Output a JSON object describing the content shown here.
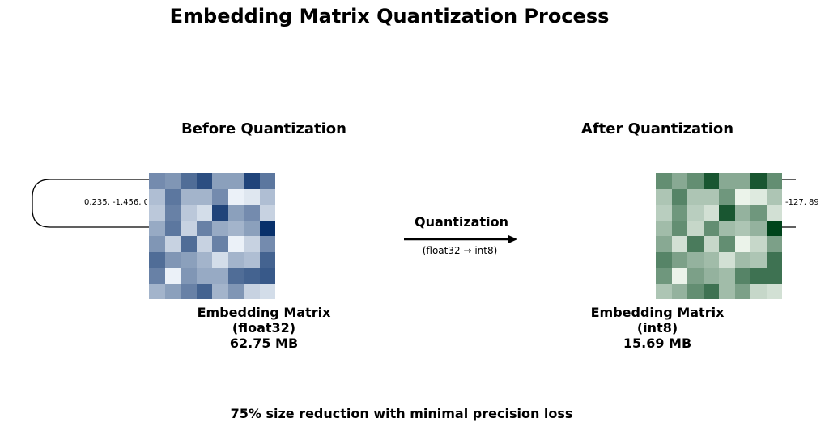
{
  "title": "Embedding Matrix Quantization Process",
  "before": {
    "heading": "Before Quantization",
    "caption_line1": "Embedding Matrix",
    "caption_line2": "(float32)",
    "caption_line3": "62.75 MB",
    "sample_values": "0.235, -1.456, 0",
    "cmap": [
      "#f7fbff",
      "#08306b"
    ],
    "matrix": [
      [
        0.55,
        0.5,
        0.7,
        0.85,
        0.45,
        0.45,
        0.9,
        0.65
      ],
      [
        0.3,
        0.65,
        0.35,
        0.35,
        0.55,
        0.05,
        0.1,
        0.3
      ],
      [
        0.25,
        0.6,
        0.25,
        0.15,
        0.9,
        0.45,
        0.55,
        0.2
      ],
      [
        0.4,
        0.65,
        0.2,
        0.6,
        0.4,
        0.35,
        0.45,
        1.0
      ],
      [
        0.5,
        0.2,
        0.7,
        0.2,
        0.6,
        0.05,
        0.2,
        0.55
      ],
      [
        0.7,
        0.5,
        0.45,
        0.35,
        0.15,
        0.35,
        0.3,
        0.75
      ],
      [
        0.6,
        0.05,
        0.5,
        0.4,
        0.4,
        0.7,
        0.75,
        0.8
      ],
      [
        0.35,
        0.45,
        0.6,
        0.75,
        0.35,
        0.5,
        0.2,
        0.15
      ]
    ]
  },
  "after": {
    "heading": "After Quantization",
    "caption_line1": "Embedding Matrix",
    "caption_line2": "(int8)",
    "caption_line3": "15.69 MB",
    "sample_values": "-127, 89",
    "cmap": [
      "#f7fcf5",
      "#00441b"
    ],
    "matrix": [
      [
        0.6,
        0.45,
        0.6,
        0.9,
        0.45,
        0.45,
        0.9,
        0.6
      ],
      [
        0.3,
        0.65,
        0.3,
        0.3,
        0.55,
        0.05,
        0.1,
        0.3
      ],
      [
        0.25,
        0.55,
        0.25,
        0.15,
        0.9,
        0.4,
        0.55,
        0.15
      ],
      [
        0.35,
        0.6,
        0.2,
        0.6,
        0.35,
        0.3,
        0.4,
        1.0
      ],
      [
        0.45,
        0.15,
        0.7,
        0.2,
        0.6,
        0.05,
        0.2,
        0.5
      ],
      [
        0.65,
        0.5,
        0.4,
        0.35,
        0.15,
        0.35,
        0.3,
        0.75
      ],
      [
        0.55,
        0.05,
        0.5,
        0.4,
        0.35,
        0.65,
        0.75,
        0.75
      ],
      [
        0.3,
        0.4,
        0.6,
        0.75,
        0.35,
        0.5,
        0.2,
        0.15
      ]
    ]
  },
  "arrow": {
    "label": "Quantization",
    "sublabel": "(float32 → int8)"
  },
  "footer": "75% size reduction with minimal precision loss"
}
